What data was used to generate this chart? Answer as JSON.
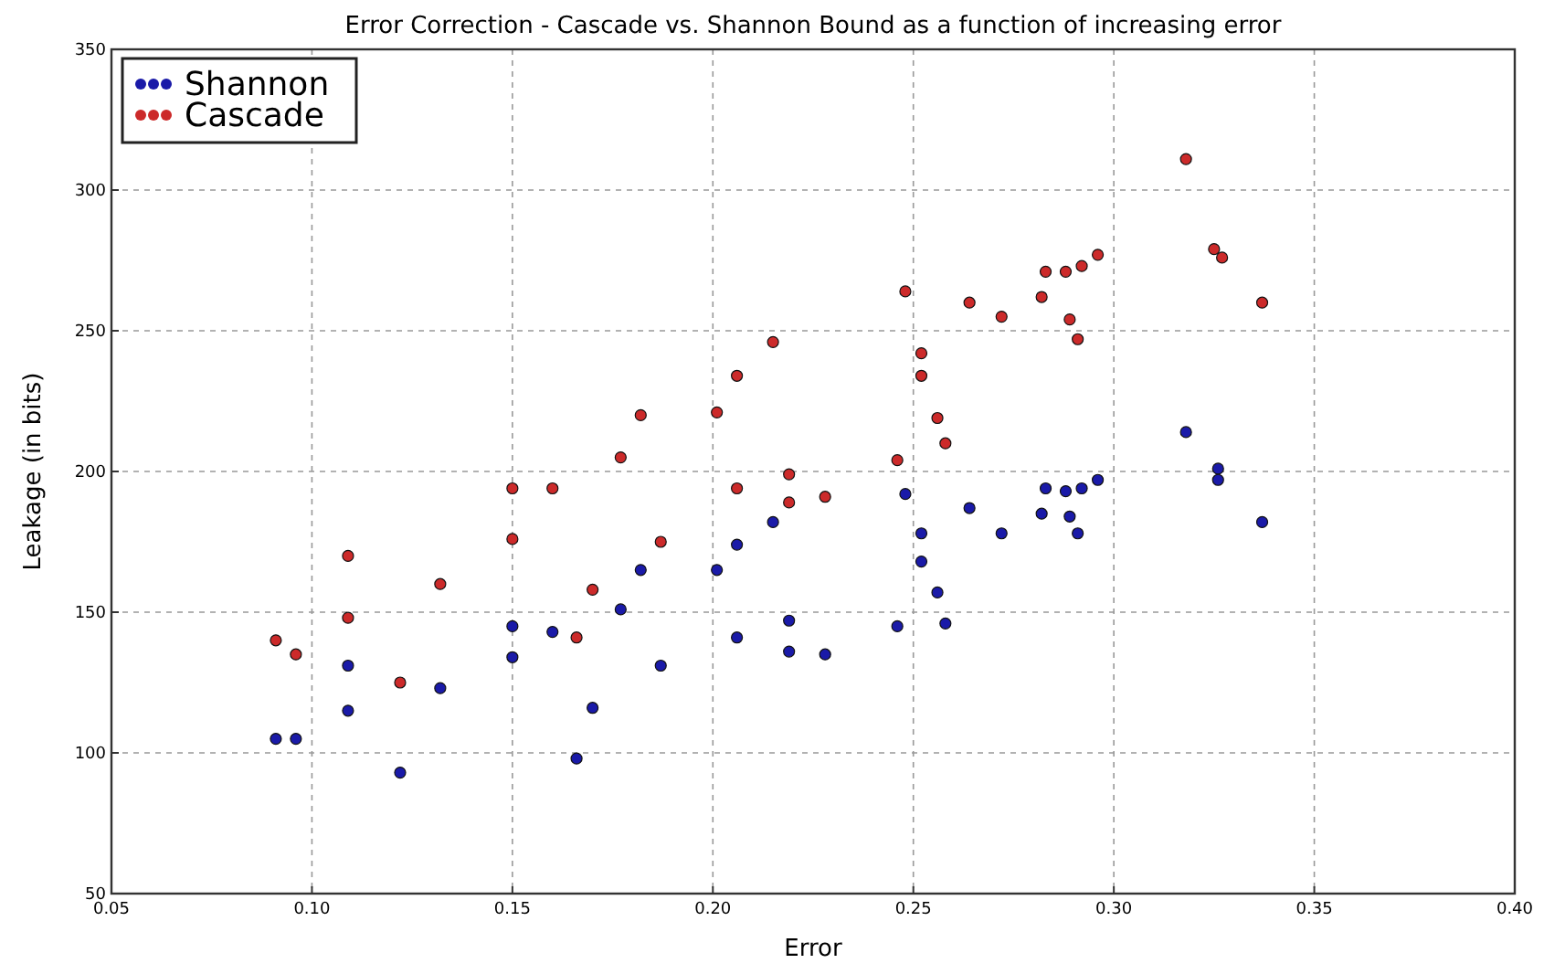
{
  "chart_data": {
    "type": "scatter",
    "title": "Error Correction - Cascade vs. Shannon Bound as a function of increasing error",
    "xlabel": "Error",
    "ylabel": "Leakage (in bits)",
    "xlim": [
      0.05,
      0.4
    ],
    "xticks": [
      {
        "value": 0.05,
        "label": "0.05"
      },
      {
        "value": 0.1,
        "label": "0.10"
      },
      {
        "value": 0.15,
        "label": "0.15"
      },
      {
        "value": 0.2,
        "label": "0.20"
      },
      {
        "value": 0.25,
        "label": "0.25"
      },
      {
        "value": 0.3,
        "label": "0.30"
      },
      {
        "value": 0.35,
        "label": "0.35"
      },
      {
        "value": 0.4,
        "label": "0.40"
      }
    ],
    "ylim": [
      50,
      350
    ],
    "yticks": [
      50,
      100,
      150,
      200,
      250,
      300,
      350
    ],
    "grid": true,
    "legend": "top left",
    "marker": "circle",
    "series": [
      {
        "name": "Shannon",
        "color": "#1a1aa8",
        "x": [
          0.091,
          0.096,
          0.109,
          0.109,
          0.122,
          0.132,
          0.15,
          0.15,
          0.16,
          0.166,
          0.17,
          0.177,
          0.182,
          0.187,
          0.201,
          0.206,
          0.206,
          0.215,
          0.219,
          0.219,
          0.228,
          0.246,
          0.248,
          0.252,
          0.252,
          0.256,
          0.258,
          0.264,
          0.272,
          0.282,
          0.283,
          0.288,
          0.289,
          0.291,
          0.292,
          0.296,
          0.318,
          0.326,
          0.326,
          0.337
        ],
        "values": [
          105,
          105,
          131,
          115,
          93,
          123,
          145,
          134,
          143,
          98,
          116,
          151,
          165,
          131,
          165,
          174,
          141,
          182,
          147,
          136,
          135,
          145,
          192,
          178,
          168,
          157,
          146,
          187,
          178,
          185,
          194,
          193,
          184,
          178,
          194,
          197,
          214,
          201,
          197,
          182
        ]
      },
      {
        "name": "Cascade",
        "color": "#cc2a2a",
        "x": [
          0.091,
          0.096,
          0.109,
          0.109,
          0.122,
          0.132,
          0.15,
          0.15,
          0.16,
          0.166,
          0.17,
          0.177,
          0.182,
          0.187,
          0.201,
          0.206,
          0.206,
          0.215,
          0.219,
          0.219,
          0.228,
          0.246,
          0.248,
          0.252,
          0.252,
          0.256,
          0.258,
          0.264,
          0.272,
          0.282,
          0.283,
          0.288,
          0.289,
          0.291,
          0.292,
          0.296,
          0.318,
          0.325,
          0.327,
          0.337
        ],
        "values": [
          140,
          135,
          170,
          148,
          125,
          160,
          194,
          176,
          194,
          141,
          158,
          205,
          220,
          175,
          221,
          234,
          194,
          246,
          199,
          189,
          191,
          204,
          264,
          242,
          234,
          219,
          210,
          260,
          255,
          262,
          271,
          271,
          254,
          247,
          273,
          277,
          311,
          279,
          276,
          260
        ]
      }
    ]
  }
}
